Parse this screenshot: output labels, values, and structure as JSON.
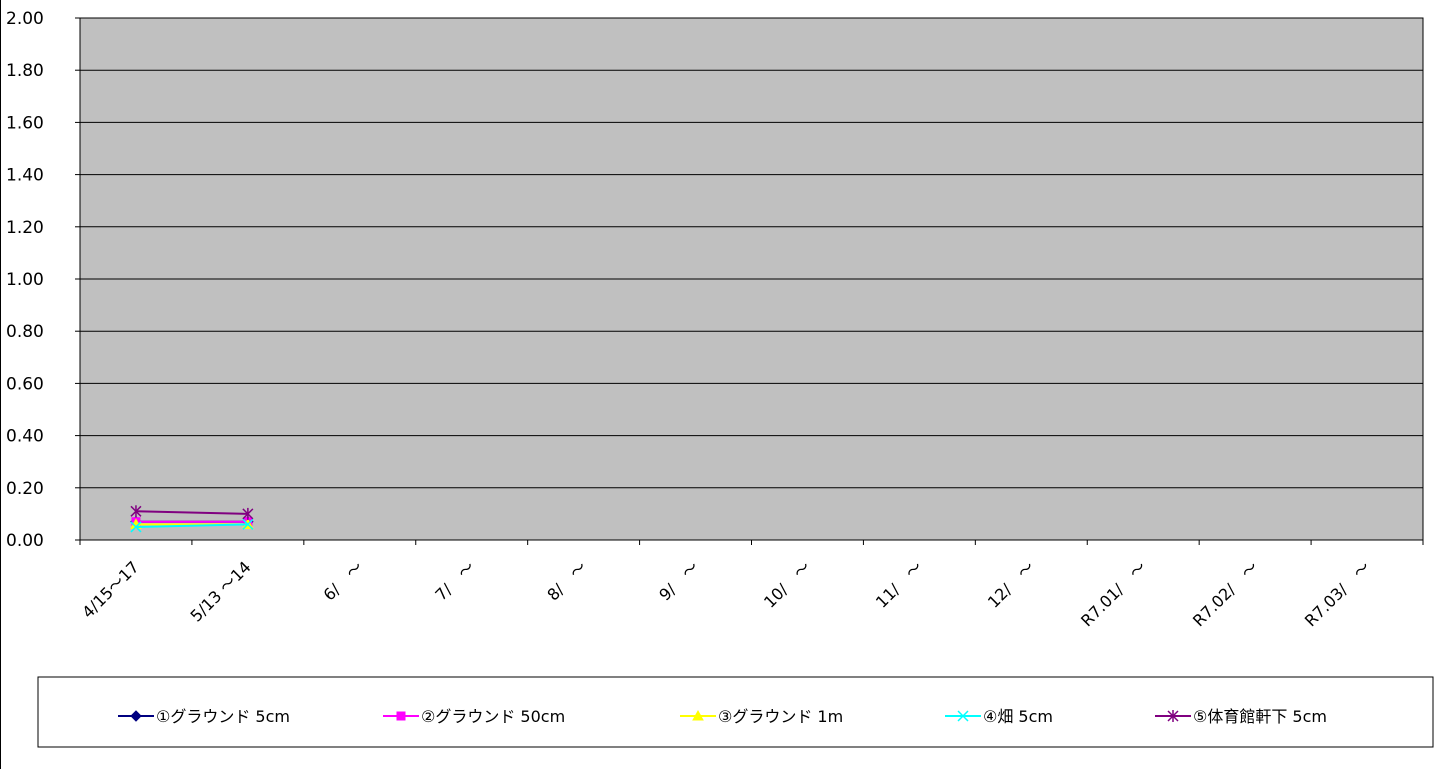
{
  "chart_data": {
    "type": "line",
    "title": "",
    "xlabel": "",
    "ylabel": "",
    "ylim": [
      0,
      2.0
    ],
    "y_ticks": [
      "0.00",
      "0.20",
      "0.40",
      "0.60",
      "0.80",
      "1.00",
      "1.20",
      "1.40",
      "1.60",
      "1.80",
      "2.00"
    ],
    "grid": true,
    "plot_background": "#c0c0c0",
    "legend_position": "bottom",
    "categories": [
      "4/15～17",
      "5/13 ～14",
      "6/　～",
      "7/　～",
      "8/　～",
      "9/　～",
      "10/　～",
      "11/　～",
      "12/　～",
      "R7.01/　～",
      "R7.02/　～",
      "R7.03/　～"
    ],
    "series": [
      {
        "name": "①グラウンド 5cm",
        "color": "#000080",
        "marker": "diamond",
        "values": [
          0.07,
          0.07,
          null,
          null,
          null,
          null,
          null,
          null,
          null,
          null,
          null,
          null
        ]
      },
      {
        "name": "②グラウンド 50cm",
        "color": "#ff00ff",
        "marker": "square",
        "values": [
          0.07,
          0.07,
          null,
          null,
          null,
          null,
          null,
          null,
          null,
          null,
          null,
          null
        ]
      },
      {
        "name": "③グラウンド 1m",
        "color": "#ffff00",
        "marker": "triangle",
        "values": [
          0.06,
          0.06,
          null,
          null,
          null,
          null,
          null,
          null,
          null,
          null,
          null,
          null
        ]
      },
      {
        "name": "④畑 5cm",
        "color": "#00ffff",
        "marker": "x",
        "values": [
          0.05,
          0.06,
          null,
          null,
          null,
          null,
          null,
          null,
          null,
          null,
          null,
          null
        ]
      },
      {
        "name": "⑤体育館軒下 5cm",
        "color": "#800080",
        "marker": "star",
        "values": [
          0.11,
          0.1,
          null,
          null,
          null,
          null,
          null,
          null,
          null,
          null,
          null,
          null
        ]
      }
    ]
  }
}
